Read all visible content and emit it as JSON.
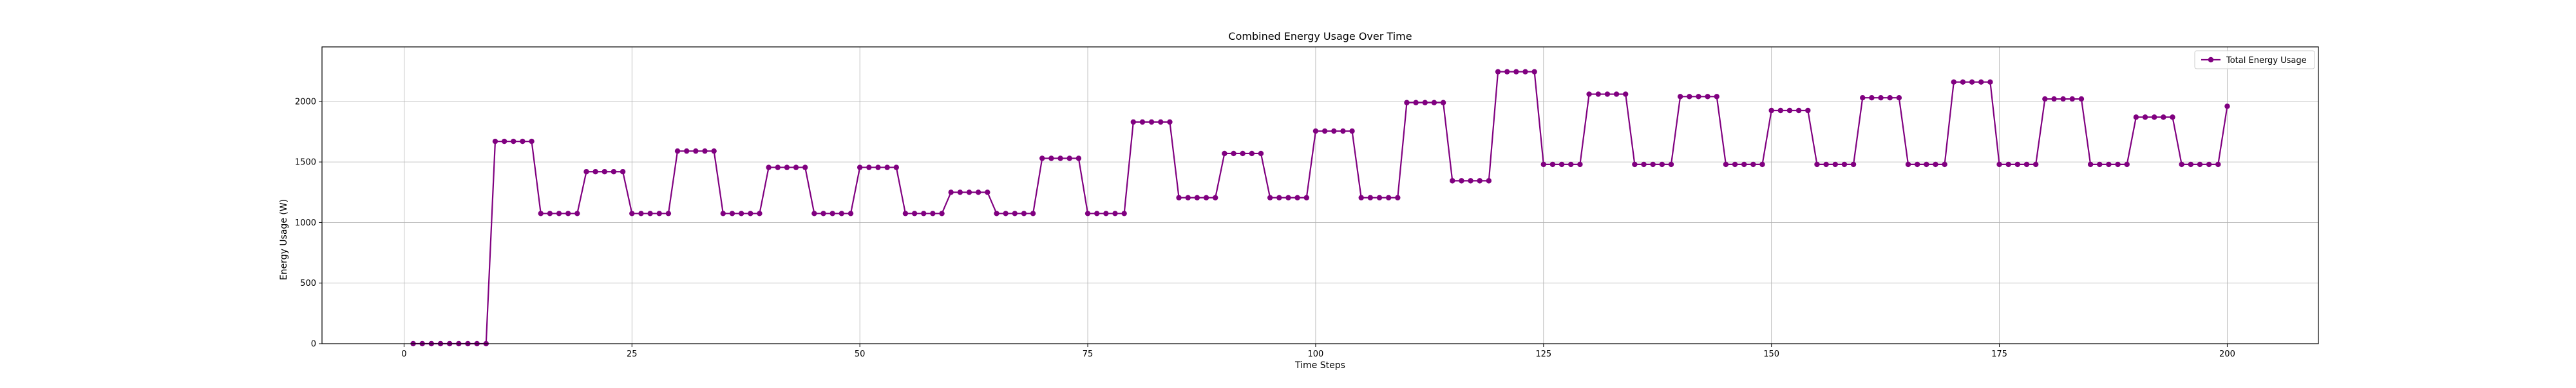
{
  "chart_data": {
    "type": "line",
    "title": "Combined Energy Usage Over Time",
    "xlabel": "Time Steps",
    "ylabel": "Energy Usage (W)",
    "xlim": [
      -9,
      210
    ],
    "ylim": [
      0,
      2450
    ],
    "x_ticks": [
      0,
      25,
      50,
      75,
      100,
      125,
      150,
      175,
      200
    ],
    "y_ticks": [
      0,
      500,
      1000,
      1500,
      2000
    ],
    "grid": true,
    "legend_position": "top-right",
    "line_color": "#800080",
    "marker": "circle",
    "series": [
      {
        "name": "Total Energy Usage",
        "x": [
          1,
          2,
          3,
          4,
          5,
          6,
          7,
          8,
          9,
          10,
          11,
          12,
          13,
          14,
          15,
          16,
          17,
          18,
          19,
          20,
          21,
          22,
          23,
          24,
          25,
          26,
          27,
          28,
          29,
          30,
          31,
          32,
          33,
          34,
          35,
          36,
          37,
          38,
          39,
          40,
          41,
          42,
          43,
          44,
          45,
          46,
          47,
          48,
          49,
          50,
          51,
          52,
          53,
          54,
          55,
          56,
          57,
          58,
          59,
          60,
          61,
          62,
          63,
          64,
          65,
          66,
          67,
          68,
          69,
          70,
          71,
          72,
          73,
          74,
          75,
          76,
          77,
          78,
          79,
          80,
          81,
          82,
          83,
          84,
          85,
          86,
          87,
          88,
          89,
          90,
          91,
          92,
          93,
          94,
          95,
          96,
          97,
          98,
          99,
          100,
          101,
          102,
          103,
          104,
          105,
          106,
          107,
          108,
          109,
          110,
          111,
          112,
          113,
          114,
          115,
          116,
          117,
          118,
          119,
          120,
          121,
          122,
          123,
          124,
          125,
          126,
          127,
          128,
          129,
          130,
          131,
          132,
          133,
          134,
          135,
          136,
          137,
          138,
          139,
          140,
          141,
          142,
          143,
          144,
          145,
          146,
          147,
          148,
          149,
          150,
          151,
          152,
          153,
          154,
          155,
          156,
          157,
          158,
          159,
          160,
          161,
          162,
          163,
          164,
          165,
          166,
          167,
          168,
          169,
          170,
          171,
          172,
          173,
          174,
          175,
          176,
          177,
          178,
          179,
          180,
          181,
          182,
          183,
          184,
          185,
          186,
          187,
          188,
          189,
          190,
          191,
          192,
          193,
          194,
          195,
          196,
          197,
          198,
          199,
          200
        ],
        "values": [
          0,
          0,
          0,
          0,
          0,
          0,
          0,
          0,
          0,
          1670,
          1670,
          1670,
          1670,
          1670,
          1075,
          1075,
          1075,
          1075,
          1075,
          1420,
          1420,
          1420,
          1420,
          1420,
          1075,
          1075,
          1075,
          1075,
          1075,
          1590,
          1590,
          1590,
          1590,
          1590,
          1075,
          1075,
          1075,
          1075,
          1075,
          1455,
          1455,
          1455,
          1455,
          1455,
          1075,
          1075,
          1075,
          1075,
          1075,
          1455,
          1455,
          1455,
          1455,
          1455,
          1075,
          1075,
          1075,
          1075,
          1075,
          1250,
          1250,
          1250,
          1250,
          1250,
          1075,
          1075,
          1075,
          1075,
          1075,
          1530,
          1530,
          1530,
          1530,
          1530,
          1075,
          1075,
          1075,
          1075,
          1075,
          1830,
          1830,
          1830,
          1830,
          1830,
          1205,
          1205,
          1205,
          1205,
          1205,
          1570,
          1570,
          1570,
          1570,
          1570,
          1205,
          1205,
          1205,
          1205,
          1205,
          1755,
          1755,
          1755,
          1755,
          1755,
          1205,
          1205,
          1205,
          1205,
          1205,
          1990,
          1990,
          1990,
          1990,
          1990,
          1345,
          1345,
          1345,
          1345,
          1345,
          2245,
          2245,
          2245,
          2245,
          2245,
          1480,
          1480,
          1480,
          1480,
          1480,
          2060,
          2060,
          2060,
          2060,
          2060,
          1480,
          1480,
          1480,
          1480,
          1480,
          2040,
          2040,
          2040,
          2040,
          2040,
          1480,
          1480,
          1480,
          1480,
          1480,
          1925,
          1925,
          1925,
          1925,
          1925,
          1480,
          1480,
          1480,
          1480,
          1480,
          2030,
          2030,
          2030,
          2030,
          2030,
          1480,
          1480,
          1480,
          1480,
          1480,
          2160,
          2160,
          2160,
          2160,
          2160,
          1480,
          1480,
          1480,
          1480,
          1480,
          2020,
          2020,
          2020,
          2020,
          2020,
          1480,
          1480,
          1480,
          1480,
          1480,
          1870,
          1870,
          1870,
          1870,
          1870,
          1480,
          1480,
          1480,
          1480,
          1480,
          1960
        ]
      }
    ]
  }
}
